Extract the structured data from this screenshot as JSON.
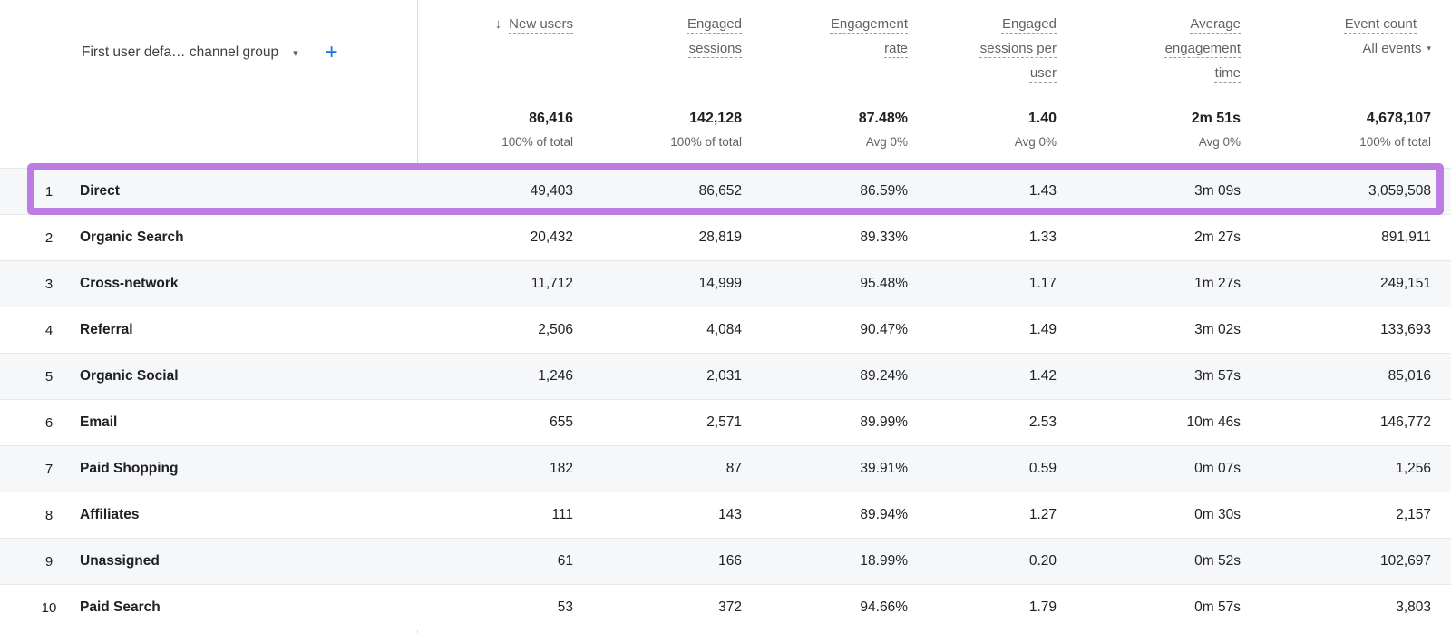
{
  "dimension": {
    "label": "First user defa… channel group"
  },
  "icons": {
    "sort_desc": "↓",
    "caret_down": "▾",
    "add": "+"
  },
  "columns": {
    "new_users": {
      "label": "New users",
      "lines": [
        "New users"
      ],
      "sorted": "descending"
    },
    "engaged_sessions": {
      "label": "Engaged sessions",
      "lines": [
        "Engaged",
        "sessions"
      ]
    },
    "engagement_rate": {
      "label": "Engagement rate",
      "lines": [
        "Engagement",
        "rate"
      ]
    },
    "engaged_sessions_per_user": {
      "label": "Engaged sessions per user",
      "lines": [
        "Engaged",
        "sessions per",
        "user"
      ]
    },
    "avg_engagement_time": {
      "label": "Average engagement time",
      "lines": [
        "Average",
        "engagement",
        "time"
      ]
    },
    "event_count": {
      "label": "Event count",
      "lines": [
        "Event count"
      ],
      "filter": "All events"
    }
  },
  "totals": {
    "new_users": {
      "value": "86,416",
      "note": "100% of total"
    },
    "engaged_sessions": {
      "value": "142,128",
      "note": "100% of total"
    },
    "engagement_rate": {
      "value": "87.48%",
      "note": "Avg 0%"
    },
    "engaged_sessions_per_user": {
      "value": "1.40",
      "note": "Avg 0%"
    },
    "avg_engagement_time": {
      "value": "2m 51s",
      "note": "Avg 0%"
    },
    "event_count": {
      "value": "4,678,107",
      "note": "100% of total"
    }
  },
  "rows": [
    {
      "num": "1",
      "channel": "Direct",
      "new_users": "49,403",
      "engaged_sessions": "86,652",
      "engagement_rate": "86.59%",
      "engaged_sessions_per_user": "1.43",
      "avg_engagement_time": "3m 09s",
      "event_count": "3,059,508",
      "highlighted": true
    },
    {
      "num": "2",
      "channel": "Organic Search",
      "new_users": "20,432",
      "engaged_sessions": "28,819",
      "engagement_rate": "89.33%",
      "engaged_sessions_per_user": "1.33",
      "avg_engagement_time": "2m 27s",
      "event_count": "891,911"
    },
    {
      "num": "3",
      "channel": "Cross-network",
      "new_users": "11,712",
      "engaged_sessions": "14,999",
      "engagement_rate": "95.48%",
      "engaged_sessions_per_user": "1.17",
      "avg_engagement_time": "1m 27s",
      "event_count": "249,151"
    },
    {
      "num": "4",
      "channel": "Referral",
      "new_users": "2,506",
      "engaged_sessions": "4,084",
      "engagement_rate": "90.47%",
      "engaged_sessions_per_user": "1.49",
      "avg_engagement_time": "3m 02s",
      "event_count": "133,693"
    },
    {
      "num": "5",
      "channel": "Organic Social",
      "new_users": "1,246",
      "engaged_sessions": "2,031",
      "engagement_rate": "89.24%",
      "engaged_sessions_per_user": "1.42",
      "avg_engagement_time": "3m 57s",
      "event_count": "85,016"
    },
    {
      "num": "6",
      "channel": "Email",
      "new_users": "655",
      "engaged_sessions": "2,571",
      "engagement_rate": "89.99%",
      "engaged_sessions_per_user": "2.53",
      "avg_engagement_time": "10m 46s",
      "event_count": "146,772"
    },
    {
      "num": "7",
      "channel": "Paid Shopping",
      "new_users": "182",
      "engaged_sessions": "87",
      "engagement_rate": "39.91%",
      "engaged_sessions_per_user": "0.59",
      "avg_engagement_time": "0m 07s",
      "event_count": "1,256"
    },
    {
      "num": "8",
      "channel": "Affiliates",
      "new_users": "111",
      "engaged_sessions": "143",
      "engagement_rate": "89.94%",
      "engaged_sessions_per_user": "1.27",
      "avg_engagement_time": "0m 30s",
      "event_count": "2,157"
    },
    {
      "num": "9",
      "channel": "Unassigned",
      "new_users": "61",
      "engaged_sessions": "166",
      "engagement_rate": "18.99%",
      "engaged_sessions_per_user": "0.20",
      "avg_engagement_time": "0m 52s",
      "event_count": "102,697"
    },
    {
      "num": "10",
      "channel": "Paid Search",
      "new_users": "53",
      "engaged_sessions": "372",
      "engagement_rate": "94.66%",
      "engaged_sessions_per_user": "1.79",
      "avg_engagement_time": "0m 57s",
      "event_count": "3,803"
    }
  ],
  "colors": {
    "highlight_border": "#bd7ce3",
    "accent_blue": "#1a73e8",
    "row_stripe": "#f6f7f9",
    "header_text": "#5f6368"
  }
}
